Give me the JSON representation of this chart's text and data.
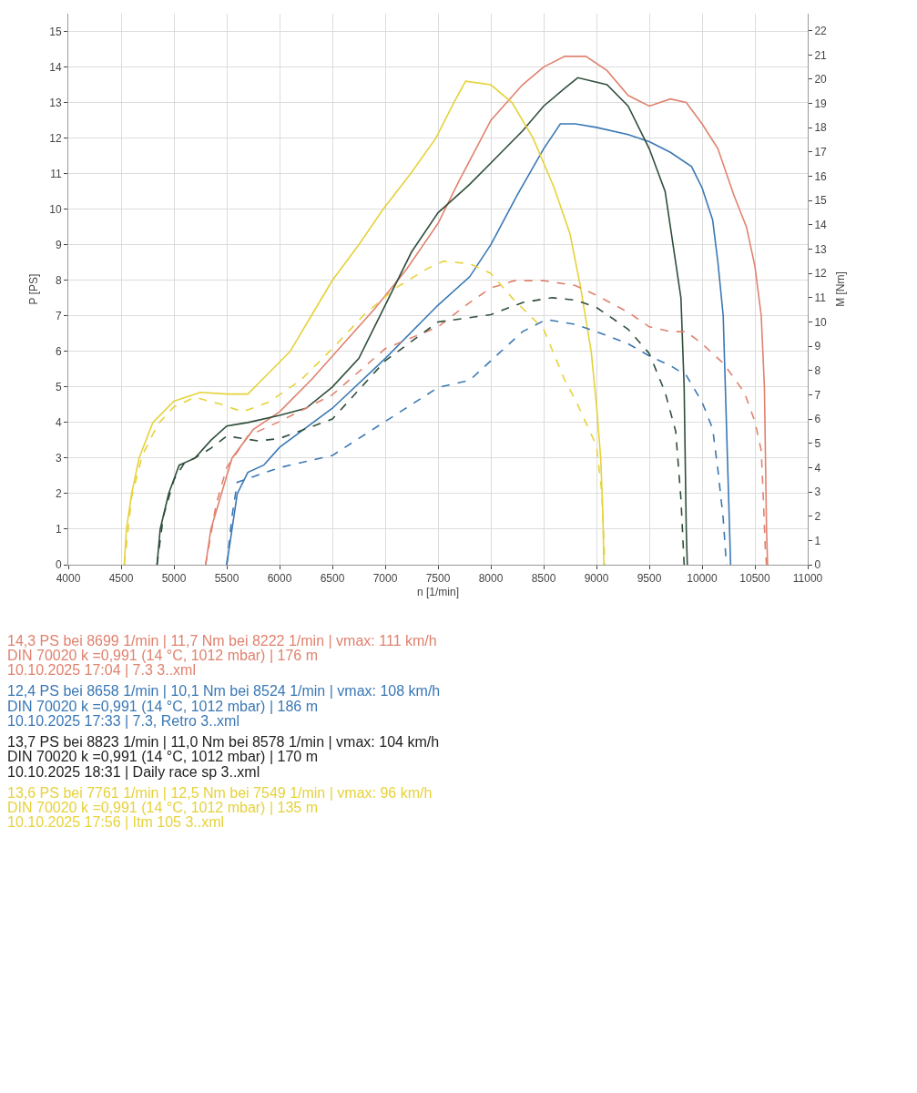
{
  "chart_data": {
    "type": "line",
    "xlabel": "n [1/min]",
    "ylabel": "P [PS]",
    "y2label": "M [Nm]",
    "xlim": [
      4000,
      11000
    ],
    "xticks": [
      4000,
      4500,
      5000,
      5500,
      6000,
      6500,
      7000,
      7500,
      8000,
      8500,
      9000,
      9500,
      10000,
      10500,
      11000
    ],
    "ylim": [
      0,
      15.5
    ],
    "yticks": [
      0,
      1,
      2,
      3,
      4,
      5,
      6,
      7,
      8,
      9,
      10,
      11,
      12,
      13,
      14,
      15
    ],
    "y2lim": [
      0,
      22.7
    ],
    "y2ticks": [
      0,
      1,
      2,
      3,
      4,
      5,
      6,
      7,
      8,
      9,
      10,
      11,
      12,
      13,
      14,
      15,
      16,
      17,
      18,
      19,
      20,
      21,
      22
    ],
    "grid": true,
    "marker": "none",
    "series": [
      {
        "color": "#e0826e",
        "line_style": "solid",
        "x": [
          5300,
          5350,
          5450,
          5550,
          5750,
          6000,
          6300,
          6600,
          6900,
          7200,
          7500,
          7700,
          8000,
          8300,
          8500,
          8699,
          8900,
          9100,
          9300,
          9500,
          9700,
          9850,
          10000,
          10150,
          10300,
          10420,
          10500,
          10560,
          10590,
          10600,
          10610,
          10620
        ],
        "values": [
          0,
          1,
          2,
          3,
          3.8,
          4.3,
          5.2,
          6.2,
          7.2,
          8.3,
          9.6,
          10.8,
          12.5,
          13.5,
          14.0,
          14.3,
          14.3,
          13.9,
          13.2,
          12.9,
          13.1,
          13.0,
          12.4,
          11.7,
          10.4,
          9.5,
          8.4,
          7,
          5,
          3,
          1,
          0
        ]
      },
      {
        "color": "#e0826e",
        "line_style": "dashed",
        "axis": "y2",
        "x": [
          5300,
          5400,
          5500,
          5700,
          6000,
          6500,
          7000,
          7500,
          7800,
          8000,
          8222,
          8500,
          8800,
          9000,
          9300,
          9500,
          9700,
          9850,
          10000,
          10200,
          10400,
          10500,
          10560,
          10580,
          10600,
          10610
        ],
        "values": [
          0,
          2.5,
          4,
          5.3,
          5.9,
          7.0,
          8.9,
          9.8,
          10.8,
          11.4,
          11.7,
          11.7,
          11.5,
          11.1,
          10.4,
          9.8,
          9.6,
          9.6,
          9.1,
          8.3,
          7.1,
          5.9,
          4.7,
          2.7,
          0.5,
          0
        ]
      },
      {
        "color": "#3a78b5",
        "line_style": "solid",
        "x": [
          5500,
          5550,
          5600,
          5700,
          5850,
          6000,
          6500,
          7000,
          7500,
          7800,
          8000,
          8250,
          8500,
          8658,
          8800,
          9000,
          9300,
          9500,
          9700,
          9900,
          10000,
          10100,
          10150,
          10200,
          10220,
          10240,
          10260,
          10270
        ],
        "values": [
          0,
          1,
          2,
          2.6,
          2.8,
          3.3,
          4.4,
          5.8,
          7.3,
          8.1,
          9.0,
          10.4,
          11.7,
          12.4,
          12.4,
          12.3,
          12.1,
          11.9,
          11.6,
          11.2,
          10.6,
          9.7,
          8.5,
          7,
          5,
          3,
          1,
          0
        ]
      },
      {
        "color": "#3a78b5",
        "line_style": "dashed",
        "axis": "y2",
        "x": [
          5500,
          5550,
          5600,
          6000,
          6500,
          7000,
          7500,
          7800,
          8000,
          8300,
          8524,
          8800,
          9000,
          9300,
          9500,
          9700,
          9850,
          10000,
          10100,
          10150,
          10200,
          10230
        ],
        "values": [
          0,
          2,
          3.4,
          4.0,
          4.5,
          5.9,
          7.3,
          7.6,
          8.4,
          9.6,
          10.1,
          9.9,
          9.6,
          9.1,
          8.6,
          8.2,
          7.8,
          6.7,
          5.6,
          3.9,
          1.9,
          0
        ]
      },
      {
        "color": "#2f4f3a",
        "line_style": "solid",
        "x": [
          4840,
          4870,
          4950,
          5050,
          5200,
          5350,
          5500,
          5700,
          6000,
          6250,
          6500,
          6750,
          7000,
          7250,
          7500,
          7800,
          8000,
          8300,
          8500,
          8700,
          8823,
          9100,
          9300,
          9500,
          9650,
          9750,
          9800,
          9830,
          9840,
          9850,
          9860
        ],
        "values": [
          0,
          1,
          2,
          2.8,
          3.0,
          3.5,
          3.9,
          4.0,
          4.2,
          4.4,
          5.0,
          5.8,
          7.3,
          8.8,
          9.9,
          10.7,
          11.3,
          12.2,
          12.9,
          13.4,
          13.7,
          13.5,
          12.9,
          11.7,
          10.5,
          8.5,
          7.5,
          5,
          3,
          1,
          0
        ]
      },
      {
        "color": "#2f4f3a",
        "line_style": "dashed",
        "axis": "y2",
        "x": [
          4840,
          4900,
          5000,
          5100,
          5200,
          5350,
          5500,
          5800,
          6000,
          6500,
          7000,
          7500,
          8000,
          8300,
          8578,
          8800,
          9000,
          9300,
          9500,
          9650,
          9750,
          9800,
          9830
        ],
        "values": [
          0,
          2,
          3.5,
          4.2,
          4.4,
          4.8,
          5.3,
          5.1,
          5.2,
          6.0,
          8.4,
          10.0,
          10.3,
          10.8,
          11.0,
          10.9,
          10.6,
          9.7,
          8.7,
          7.1,
          5.5,
          2.7,
          0
        ]
      },
      {
        "color": "#e6d23a",
        "line_style": "solid",
        "x": [
          4530,
          4550,
          4600,
          4670,
          4800,
          5000,
          5250,
          5500,
          5700,
          5900,
          6100,
          6300,
          6500,
          6750,
          6980,
          7240,
          7480,
          7650,
          7761,
          8000,
          8200,
          8400,
          8600,
          8750,
          8850,
          8950,
          9000,
          9040,
          9060,
          9070
        ],
        "values": [
          0,
          1,
          2,
          3,
          4,
          4.6,
          4.85,
          4.8,
          4.8,
          5.4,
          6.0,
          7,
          8,
          9,
          10,
          11,
          12,
          13,
          13.6,
          13.5,
          13.0,
          12.0,
          10.6,
          9.3,
          7.8,
          6,
          4.5,
          3,
          1.5,
          0
        ]
      },
      {
        "color": "#e6d23a",
        "line_style": "dashed",
        "axis": "y2",
        "x": [
          4530,
          4600,
          4700,
          4850,
          5000,
          5200,
          5450,
          5650,
          5900,
          6200,
          6500,
          6800,
          7100,
          7400,
          7549,
          7800,
          8000,
          8200,
          8500,
          8700,
          8800,
          9000,
          9050,
          9070,
          9080
        ],
        "values": [
          0,
          2.8,
          4.5,
          5.8,
          6.5,
          6.9,
          6.6,
          6.3,
          6.7,
          7.6,
          8.9,
          10.3,
          11.4,
          12.2,
          12.5,
          12.4,
          12.0,
          11.0,
          9.7,
          7.6,
          6.8,
          4.9,
          3,
          1,
          0
        ]
      }
    ],
    "annotations": [
      "14,3 PS bei 8699 1/min | 11,7 Nm bei 8222 1/min | vmax: 111 km/h",
      "DIN 70020 k =0,991 (14 °C, 1012 mbar) | 176 m",
      "10.10.2025 17:04 | 7.3 3..xml",
      "12,4 PS bei 8658 1/min | 10,1 Nm bei 8524 1/min | vmax: 108 km/h",
      "DIN 70020 k =0,991 (14 °C, 1012 mbar) | 186 m",
      "10.10.2025 17:33 | 7.3, Retro 3..xml",
      "13,7 PS bei 8823 1/min | 11,0 Nm bei 8578 1/min | vmax: 104 km/h",
      "DIN 70020 k =0,991 (14 °C, 1012 mbar) | 170 m",
      "10.10.2025 18:31 | Daily race sp 3..xml",
      "13,6 PS bei 7761 1/min | 12,5 Nm bei 7549 1/min | vmax: 96 km/h",
      "DIN 70020 k =0,991 (14 °C, 1012 mbar) | 135 m",
      "10.10.2025 17:56 | Itm 105 3..xml"
    ]
  }
}
